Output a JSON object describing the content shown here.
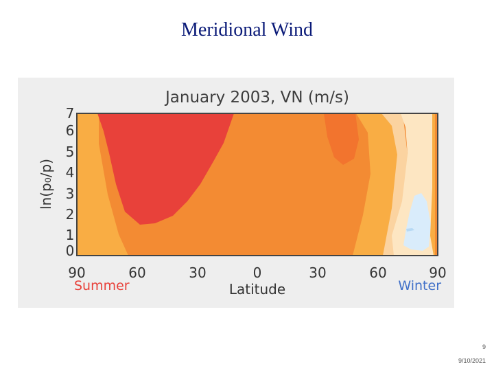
{
  "slide": {
    "title": "Meridional Wind",
    "page_number": "9",
    "date": "9/10/2021"
  },
  "chart_data": {
    "type": "heatmap",
    "title": "January 2003, VN (m/s)",
    "xlabel": "Latitude",
    "ylabel": "ln(p₀/p)",
    "x_ticks": [
      "90",
      "60",
      "30",
      "0",
      "30",
      "60",
      "90"
    ],
    "x_tick_values": [
      -90,
      -60,
      -30,
      0,
      30,
      60,
      90
    ],
    "y_ticks": [
      "7",
      "6",
      "5",
      "4",
      "3",
      "2",
      "1",
      "0"
    ],
    "y_tick_values": [
      7,
      6,
      5,
      4,
      3,
      2,
      1,
      0
    ],
    "xlim": [
      -90,
      90
    ],
    "ylim": [
      0,
      7
    ],
    "hemisphere_labels": {
      "left": "Summer",
      "right": "Winter"
    },
    "colors": {
      "strong_positive": "#e8413a",
      "moderate_positive": "#f2742e",
      "weak_positive": "#f9ad44",
      "near_zero": "#fde6c2",
      "negative": "#d9ecfb",
      "summer_label": "#e8413a",
      "winter_label": "#3f6fc8"
    },
    "contour_levels": [
      {
        "label": "level-0",
        "color": "#fbd3a0"
      },
      {
        "label": "level-1",
        "color": "#f9ad44"
      },
      {
        "label": "level-2",
        "color": "#f38b33"
      },
      {
        "label": "level-3",
        "color": "#f2742e"
      },
      {
        "label": "level-4",
        "color": "#e8413a"
      },
      {
        "label": "negative",
        "color": "#d9ecfb"
      }
    ]
  }
}
